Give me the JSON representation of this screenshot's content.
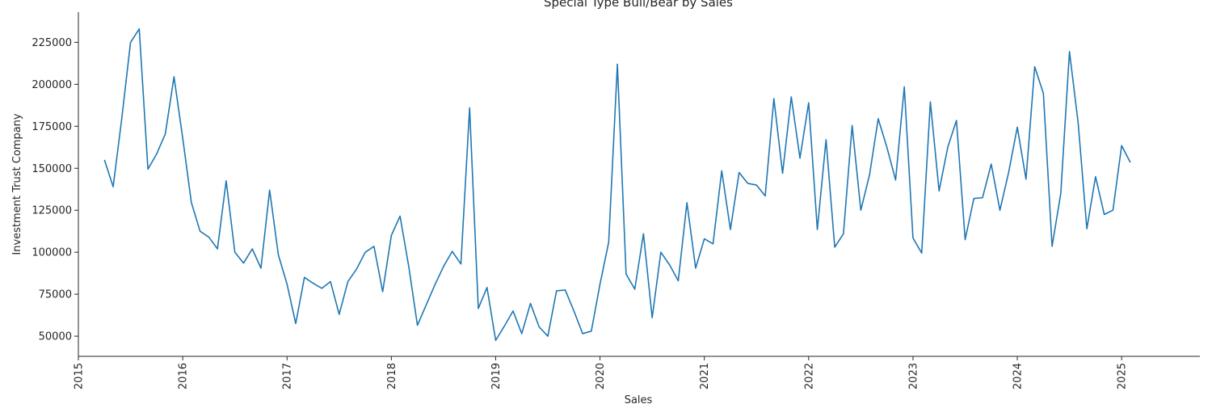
{
  "chart_data": {
    "type": "line",
    "title": "Special Type Bull/Bear by Sales",
    "xlabel": "Sales",
    "ylabel": "Investment Trust Company",
    "x_ticks": [
      "2015",
      "2016",
      "2017",
      "2018",
      "2019",
      "2020",
      "2021",
      "2022",
      "2023",
      "2024",
      "2025"
    ],
    "y_ticks": [
      50000,
      75000,
      100000,
      125000,
      150000,
      175000,
      200000,
      225000
    ],
    "xlim": [
      "2015-01-01",
      "2025-10-01"
    ],
    "ylim": [
      38000,
      243000
    ],
    "grid": false,
    "line_color": "#1f77b4",
    "series": [
      {
        "start_year": 2015,
        "start_month": 4,
        "values": [
          155000,
          139000,
          180000,
          225000,
          233000,
          149500,
          158500,
          170500,
          204500,
          168000,
          129500,
          112500,
          109000,
          102000,
          142500,
          100000,
          93500,
          102000,
          90500,
          137000,
          98500,
          81000,
          57500,
          85000,
          81500,
          78500,
          82500,
          63000,
          82500,
          90000,
          100000,
          103500,
          76500,
          110000,
          121500,
          91500,
          56500,
          68500,
          80500,
          91500,
          100500,
          93000,
          186000,
          66500,
          79000,
          47500,
          56000,
          65000,
          51500,
          69500,
          55500,
          50000,
          77000,
          77500,
          65000,
          51500,
          53000,
          81000,
          106000,
          212000,
          87000,
          78000,
          111000,
          61000,
          100000,
          92500,
          83000,
          129500,
          90500,
          108000,
          105000,
          148500,
          113500,
          147500,
          141000,
          140000,
          133500,
          191500,
          147000,
          192500,
          156000,
          189000,
          113500,
          167000,
          103000,
          111000,
          175500,
          125000,
          146000,
          179500,
          162500,
          143000,
          198500,
          108500,
          99500,
          189500,
          136500,
          162500,
          178500,
          107500,
          132000,
          132500,
          152500,
          125000,
          147500,
          174500,
          143500,
          210500,
          194500,
          103500,
          135000,
          219500,
          177000,
          114000,
          145000,
          122500,
          125000,
          163500,
          153500
        ]
      }
    ]
  }
}
